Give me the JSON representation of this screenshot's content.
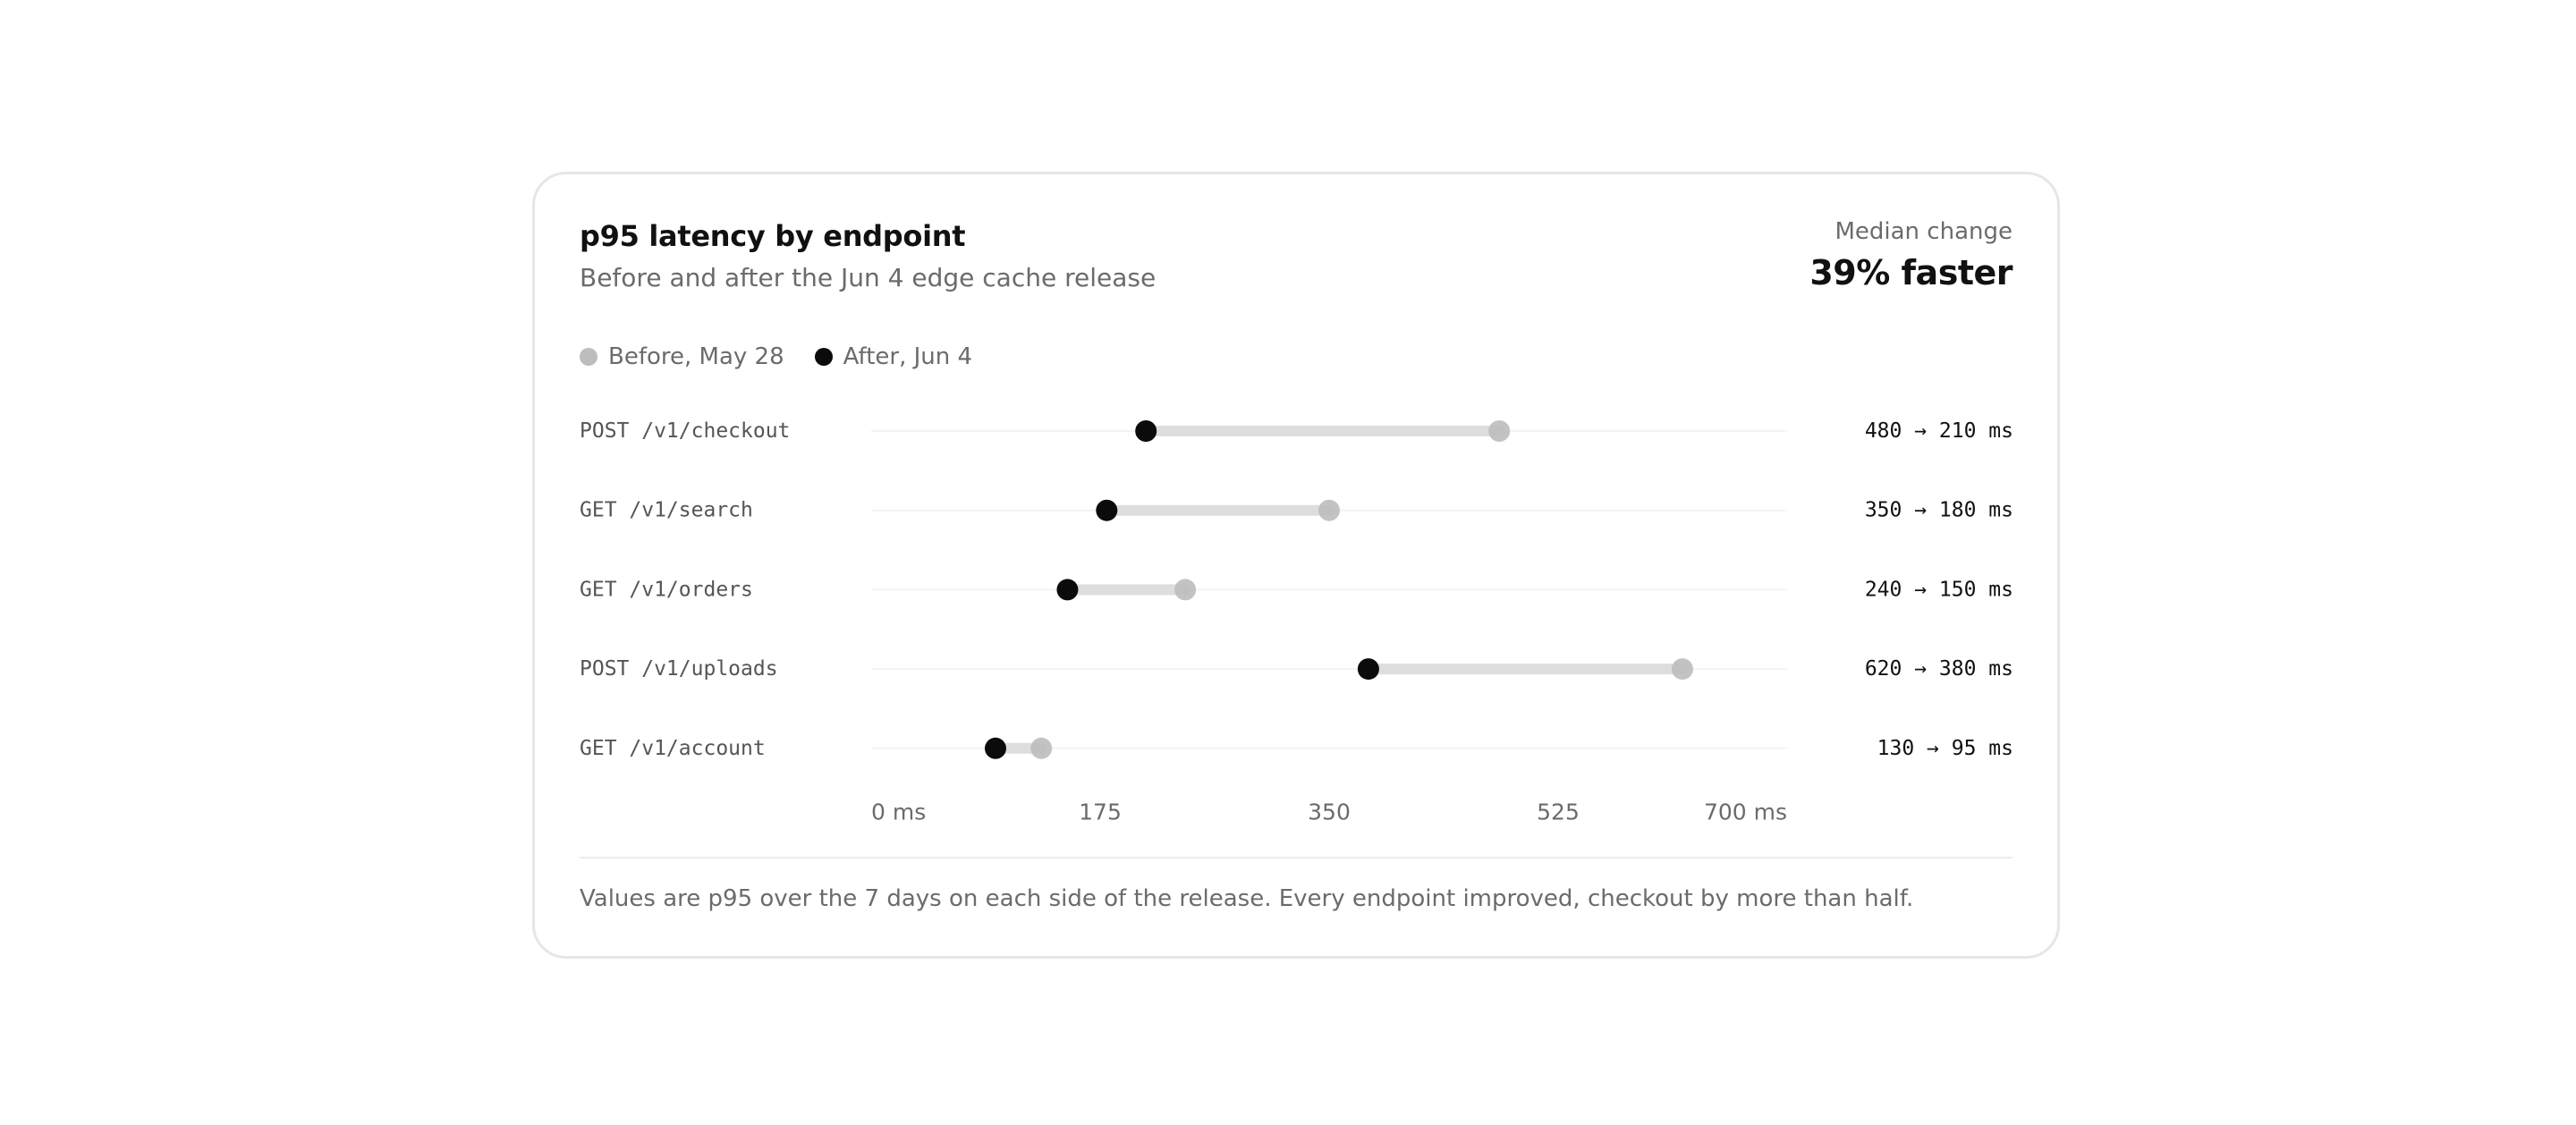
{
  "card": {
    "title": "p95 latency by endpoint",
    "subtitle": "Before and after the Jun 4 edge cache release",
    "summary_label": "Median change",
    "summary_value": "39% faster",
    "footnote": "Values are p95 over the 7 days on each side of the release. Every endpoint improved, checkout by more than half."
  },
  "legend": [
    {
      "label": "Before, May 28",
      "color": "#bdbdbd"
    },
    {
      "label": "After, Jun 4",
      "color": "#0b0b0b"
    }
  ],
  "chart_data": {
    "type": "dumbbell",
    "title": "p95 latency by endpoint",
    "subtitle": "Before and after the Jun 4 edge cache release",
    "xlabel": "",
    "ylabel": "",
    "xlim": [
      0,
      700
    ],
    "x_ticks": [
      0,
      175,
      350,
      525,
      700
    ],
    "x_tick_labels": [
      "0 ms",
      "175",
      "350",
      "525",
      "700 ms"
    ],
    "grid": false,
    "legend_position": "top-left",
    "categories": [
      "POST /v1/checkout",
      "GET /v1/search",
      "GET /v1/orders",
      "POST /v1/uploads",
      "GET /v1/account"
    ],
    "series": [
      {
        "name": "Before, May 28",
        "values": [
          480,
          350,
          240,
          620,
          130
        ],
        "color": "#bdbdbd"
      },
      {
        "name": "After, Jun 4",
        "values": [
          210,
          180,
          150,
          380,
          95
        ],
        "color": "#0b0b0b"
      }
    ],
    "value_labels": [
      "480 → 210 ms",
      "350 → 180 ms",
      "240 → 150 ms",
      "620 → 380 ms",
      "130 → 95 ms"
    ],
    "colors": {
      "connector": "#dddddd",
      "row_line": "#f3f3f3",
      "label": "#555555",
      "value_label": "#111111",
      "tick": "#6b6b6b"
    }
  }
}
